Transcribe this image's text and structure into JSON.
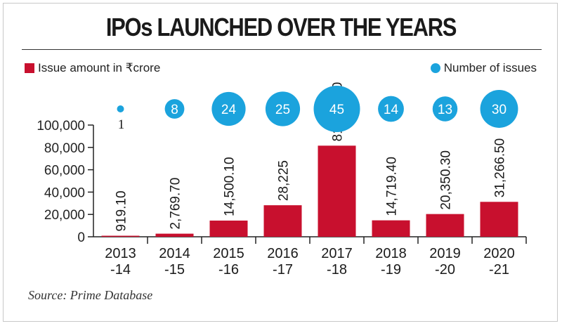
{
  "title": "IPOs LAUNCHED OVER THE YEARS",
  "source": "Source: Prime Database",
  "colors": {
    "bar": "#c8102e",
    "bubble": "#1ba3dd",
    "axis": "#222222"
  },
  "legend": {
    "bar_label": "Issue amount in ₹crore",
    "bubble_label": "Number of issues"
  },
  "chart_data": {
    "type": "bar",
    "categories": [
      "2013\n-14",
      "2014\n-15",
      "2015\n-16",
      "2016\n-17",
      "2017\n-18",
      "2018\n-19",
      "2019\n-20",
      "2020\n-21"
    ],
    "series": [
      {
        "name": "Issue amount in ₹crore",
        "values": [
          919.1,
          2769.7,
          14500.1,
          28225,
          81553.3,
          14719.4,
          20350.3,
          31266.5
        ],
        "labels": [
          "919.10",
          "2,769.70",
          "14,500.10",
          "28,225",
          "81,553.30",
          "14,719.40",
          "20,350.30",
          "31,266.50"
        ]
      },
      {
        "name": "Number of issues",
        "values": [
          1,
          8,
          24,
          25,
          45,
          14,
          13,
          30
        ],
        "labels": [
          "1",
          "8",
          "24",
          "25",
          "45",
          "14",
          "13",
          "30"
        ]
      }
    ],
    "ylim": [
      0,
      100000
    ],
    "yticks": [
      "0",
      "20,000",
      "40,000",
      "60,000",
      "80,000",
      "100,000"
    ],
    "legend_position": "top",
    "grid": false
  }
}
